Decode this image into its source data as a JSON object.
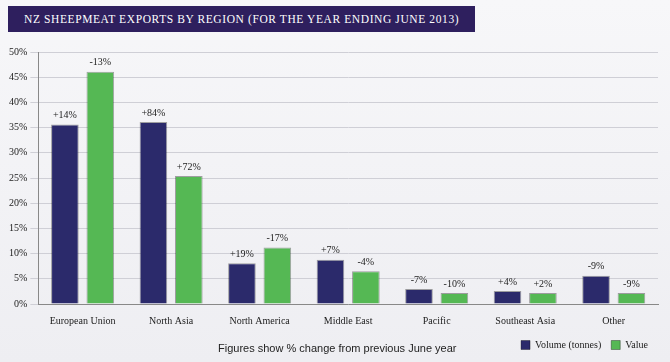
{
  "chart_data": {
    "type": "bar",
    "title": "NZ SHEEPMEAT EXPORTS BY REGION (FOR THE YEAR ENDING JUNE 2013)",
    "categories": [
      "European Union",
      "North Asia",
      "North America",
      "Middle East",
      "Pacific",
      "Southeast Asia",
      "Other"
    ],
    "series": [
      {
        "name": "Volume (tonnes)",
        "color": "#2b2a6b",
        "values": [
          35.6,
          36.1,
          8.1,
          8.8,
          3.0,
          2.6,
          5.6
        ],
        "change_labels": [
          "+14%",
          "+84%",
          "+19%",
          "+7%",
          "-7%",
          "+4%",
          "-9%"
        ]
      },
      {
        "name": "Value",
        "color": "#55b854",
        "values": [
          46.1,
          25.4,
          11.2,
          6.5,
          2.2,
          2.2,
          2.2
        ],
        "change_labels": [
          "-13%",
          "+72%",
          "-17%",
          "-4%",
          "-10%",
          "+2%",
          "-9%"
        ]
      }
    ],
    "ylim": [
      0,
      50
    ],
    "yticks": [
      {
        "value": 0,
        "label": "0%"
      },
      {
        "value": 5,
        "label": "5%"
      },
      {
        "value": 10,
        "label": "10%"
      },
      {
        "value": 15,
        "label": "15%"
      },
      {
        "value": 20,
        "label": "20%"
      },
      {
        "value": 25,
        "label": "25%"
      },
      {
        "value": 30,
        "label": "30%"
      },
      {
        "value": 35,
        "label": "35%"
      },
      {
        "value": 40,
        "label": "40%"
      },
      {
        "value": 45,
        "label": "45%"
      },
      {
        "value": 50,
        "label": "50%"
      }
    ],
    "grid": true,
    "legend": "lower right",
    "note": "Figures show % change from previous June year"
  }
}
